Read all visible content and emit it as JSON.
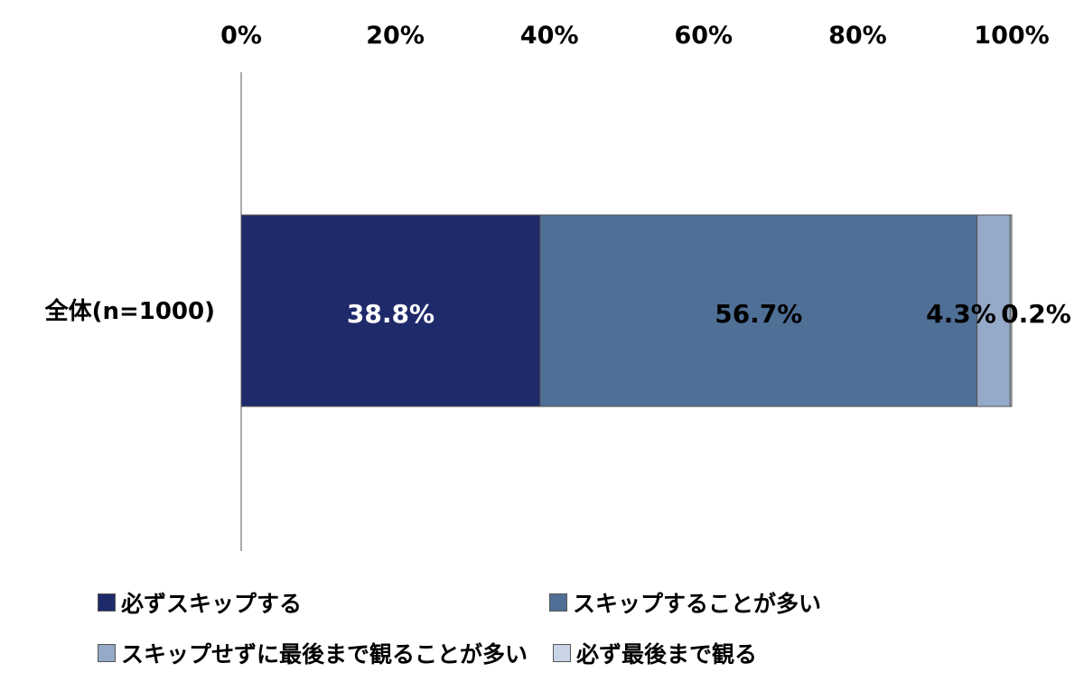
{
  "chart_data": {
    "type": "bar",
    "orientation": "horizontal",
    "stacked": true,
    "title": "",
    "xlabel": "",
    "ylabel": "",
    "xlim": [
      0,
      100
    ],
    "x_ticks": [
      "0%",
      "20%",
      "40%",
      "60%",
      "80%",
      "100%"
    ],
    "x_tick_position": "top",
    "grid": false,
    "categories": [
      "全体(n=1000)"
    ],
    "series": [
      {
        "name": "必ずスキップする",
        "values": [
          38.8
        ],
        "label": "38.8%",
        "color": "#1f2a6b",
        "label_color": "#ffffff"
      },
      {
        "name": "スキップすることが多い",
        "values": [
          56.7
        ],
        "label": "56.7%",
        "color": "#4f6f96",
        "label_color": "#000000"
      },
      {
        "name": "スキップせずに最後まで観ることが多い",
        "values": [
          4.3
        ],
        "label": "4.3%",
        "color": "#95aac8",
        "label_color": "#000000"
      },
      {
        "name": "必ず最後まで観る",
        "values": [
          0.2
        ],
        "label": "0.2%",
        "color": "#c9d5e6",
        "label_color": "#000000"
      }
    ],
    "legend_position": "bottom"
  }
}
